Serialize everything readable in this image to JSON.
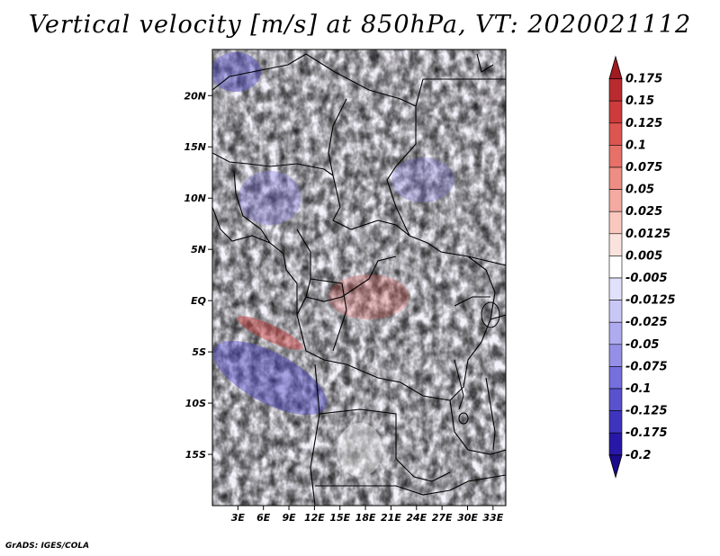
{
  "title": "Vertical velocity [m/s] at 850hPa, VT: 2020021112",
  "footer": "GrADS: IGES/COLA",
  "map": {
    "lat_ticks": [
      "20N",
      "15N",
      "10N",
      "5N",
      "EQ",
      "5S",
      "10S",
      "15S"
    ],
    "lat_values": [
      20,
      15,
      10,
      5,
      0,
      -5,
      -10,
      -15
    ],
    "lon_ticks": [
      "3E",
      "6E",
      "9E",
      "12E",
      "15E",
      "18E",
      "21E",
      "24E",
      "27E",
      "30E",
      "33E"
    ],
    "lon_values": [
      3,
      6,
      9,
      12,
      15,
      18,
      21,
      24,
      27,
      30,
      33
    ],
    "lon_range": [
      0,
      34.5
    ],
    "lat_range": [
      -20,
      24.5
    ]
  },
  "colorbar": {
    "labels": [
      "0.175",
      "0.15",
      "0.125",
      "0.1",
      "0.075",
      "0.05",
      "0.025",
      "0.0125",
      "0.005",
      "-0.005",
      "-0.0125",
      "-0.025",
      "-0.05",
      "-0.075",
      "-0.1",
      "-0.125",
      "-0.175",
      "-0.2"
    ],
    "colors": [
      "#a01a1f",
      "#b92b2e",
      "#cd3b3c",
      "#dc5550",
      "#e77168",
      "#ee8d83",
      "#f4aaa0",
      "#f8c8bf",
      "#fbe3dd",
      "#ffffff",
      "#e1e1fb",
      "#c8c7f5",
      "#aeacef",
      "#9490e8",
      "#7570de",
      "#5852cf",
      "#3d35bd",
      "#2818a8",
      "#1a0a8c"
    ]
  }
}
